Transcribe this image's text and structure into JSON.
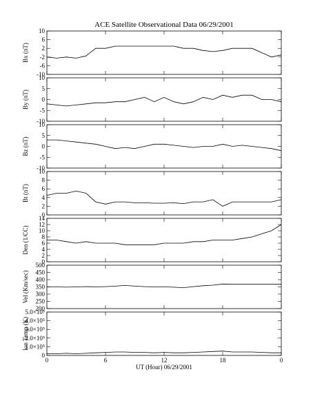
{
  "chart_data": [
    {
      "type": "line",
      "title": "ACE Satellite Observational Data   06/29/2001",
      "ylabel": "Bx (nT)",
      "color": "#000000",
      "xlim": [
        0,
        24
      ],
      "ylim": [
        -10,
        10
      ],
      "yticks": [
        10,
        6,
        2,
        -2,
        -6,
        -10
      ],
      "x": [
        0,
        1,
        2,
        3,
        4,
        5,
        6,
        7,
        8,
        9,
        10,
        11,
        12,
        13,
        14,
        15,
        16,
        17,
        18,
        19,
        20,
        21,
        22,
        23,
        24
      ],
      "values": [
        -2,
        -2.5,
        -2,
        -2.5,
        -1.5,
        2,
        2,
        3,
        3,
        3,
        3,
        3,
        3,
        3,
        2,
        2,
        1,
        0.5,
        1,
        2,
        2,
        2,
        0,
        -2,
        -1
      ]
    },
    {
      "type": "line",
      "ylabel": "By (nT)",
      "color": "#000000",
      "xlim": [
        0,
        24
      ],
      "ylim": [
        -10,
        10
      ],
      "yticks": [
        10,
        5,
        0,
        -5,
        -10
      ],
      "x": [
        0,
        1,
        2,
        3,
        4,
        5,
        6,
        7,
        8,
        9,
        10,
        11,
        12,
        13,
        14,
        15,
        16,
        17,
        18,
        19,
        20,
        21,
        22,
        23,
        24
      ],
      "values": [
        -2,
        -2.5,
        -3,
        -2.5,
        -2,
        -1.5,
        -1.5,
        -1,
        -1,
        0,
        1,
        -1,
        1,
        -1,
        -2,
        -1,
        1,
        0,
        2,
        1,
        2,
        2,
        0,
        0,
        -1
      ]
    },
    {
      "type": "line",
      "ylabel": "Bz (nT)",
      "color": "#000000",
      "xlim": [
        0,
        24
      ],
      "ylim": [
        -10,
        10
      ],
      "yticks": [
        10,
        5,
        0,
        -5,
        -10
      ],
      "x": [
        0,
        1,
        2,
        3,
        4,
        5,
        6,
        7,
        8,
        9,
        10,
        11,
        12,
        13,
        14,
        15,
        16,
        17,
        18,
        19,
        20,
        21,
        22,
        23,
        24
      ],
      "values": [
        3,
        3,
        2.5,
        2,
        1.5,
        1,
        0,
        -1,
        -0.5,
        -1,
        0,
        1,
        1,
        0.5,
        0,
        -0.5,
        0,
        0,
        1,
        0,
        0.5,
        0,
        -0.5,
        -1,
        -2
      ]
    },
    {
      "type": "line",
      "ylabel": "Bt (nT)",
      "color": "#000000",
      "xlim": [
        0,
        24
      ],
      "ylim": [
        0,
        10
      ],
      "yticks": [
        10,
        8,
        6,
        4,
        2,
        0
      ],
      "x": [
        0,
        1,
        2,
        3,
        4,
        5,
        6,
        7,
        8,
        9,
        10,
        11,
        12,
        13,
        14,
        15,
        16,
        17,
        18,
        19,
        20,
        21,
        22,
        23,
        24
      ],
      "values": [
        4.5,
        5,
        5,
        5.5,
        5,
        3,
        2.5,
        3,
        3,
        2.8,
        2.8,
        2.7,
        2.7,
        2.8,
        2.6,
        3,
        3,
        3.5,
        2,
        3,
        3,
        3,
        3,
        3,
        3.5
      ]
    },
    {
      "type": "line",
      "ylabel": "Den (1/CC)",
      "color": "#000000",
      "xlim": [
        0,
        24
      ],
      "ylim": [
        0,
        14
      ],
      "yticks": [
        14,
        12,
        10,
        8,
        6,
        4,
        2,
        0
      ],
      "x": [
        0,
        1,
        2,
        3,
        4,
        5,
        6,
        7,
        8,
        9,
        10,
        11,
        12,
        13,
        14,
        15,
        16,
        17,
        18,
        19,
        20,
        21,
        22,
        23,
        24
      ],
      "values": [
        7,
        7,
        6.5,
        6,
        6.5,
        6,
        6,
        6,
        5.5,
        5.5,
        5.5,
        5.5,
        6,
        6,
        6,
        6.5,
        6.5,
        7,
        7,
        7,
        7.5,
        8,
        9,
        10,
        12
      ]
    },
    {
      "type": "line",
      "ylabel": "Vel (Km/sec)",
      "color": "#000000",
      "xlim": [
        0,
        24
      ],
      "ylim": [
        200,
        500
      ],
      "yticks": [
        500,
        450,
        400,
        350,
        300,
        250,
        200
      ],
      "x": [
        0,
        1,
        2,
        3,
        4,
        5,
        6,
        7,
        8,
        9,
        10,
        11,
        12,
        13,
        14,
        15,
        16,
        17,
        18,
        19,
        20,
        21,
        22,
        23,
        24
      ],
      "values": [
        350,
        350,
        348,
        350,
        352,
        350,
        352,
        355,
        360,
        355,
        352,
        350,
        350,
        348,
        345,
        352,
        358,
        362,
        370,
        368,
        368,
        368,
        368,
        368,
        368
      ]
    },
    {
      "type": "line",
      "ylabel": "Ion Temp (K)",
      "xlabel": "UT (Hour)   06/29/2001",
      "color": "#000000",
      "xlim": [
        0,
        24
      ],
      "ylim": [
        0,
        500000
      ],
      "yticks": [
        0,
        {
          "value": 100000,
          "label": "1.0×10⁵"
        },
        {
          "value": 200000,
          "label": "2.0×10⁵"
        },
        {
          "value": 300000,
          "label": "3.0×10⁵"
        },
        {
          "value": 400000,
          "label": "4.0×10⁵"
        },
        {
          "value": 500000,
          "label": "5.0×10⁵"
        }
      ],
      "xticks": [
        0,
        6,
        12,
        18,
        {
          "value": 24,
          "label": "0"
        }
      ],
      "x": [
        0,
        1,
        2,
        3,
        4,
        5,
        6,
        7,
        8,
        9,
        10,
        11,
        12,
        13,
        14,
        15,
        16,
        17,
        18,
        19,
        20,
        21,
        22,
        23,
        24
      ],
      "values": [
        20000,
        20000,
        25000,
        20000,
        25000,
        30000,
        35000,
        40000,
        40000,
        35000,
        35000,
        30000,
        35000,
        30000,
        30000,
        35000,
        40000,
        45000,
        50000,
        40000,
        40000,
        40000,
        35000,
        30000,
        30000
      ]
    }
  ]
}
